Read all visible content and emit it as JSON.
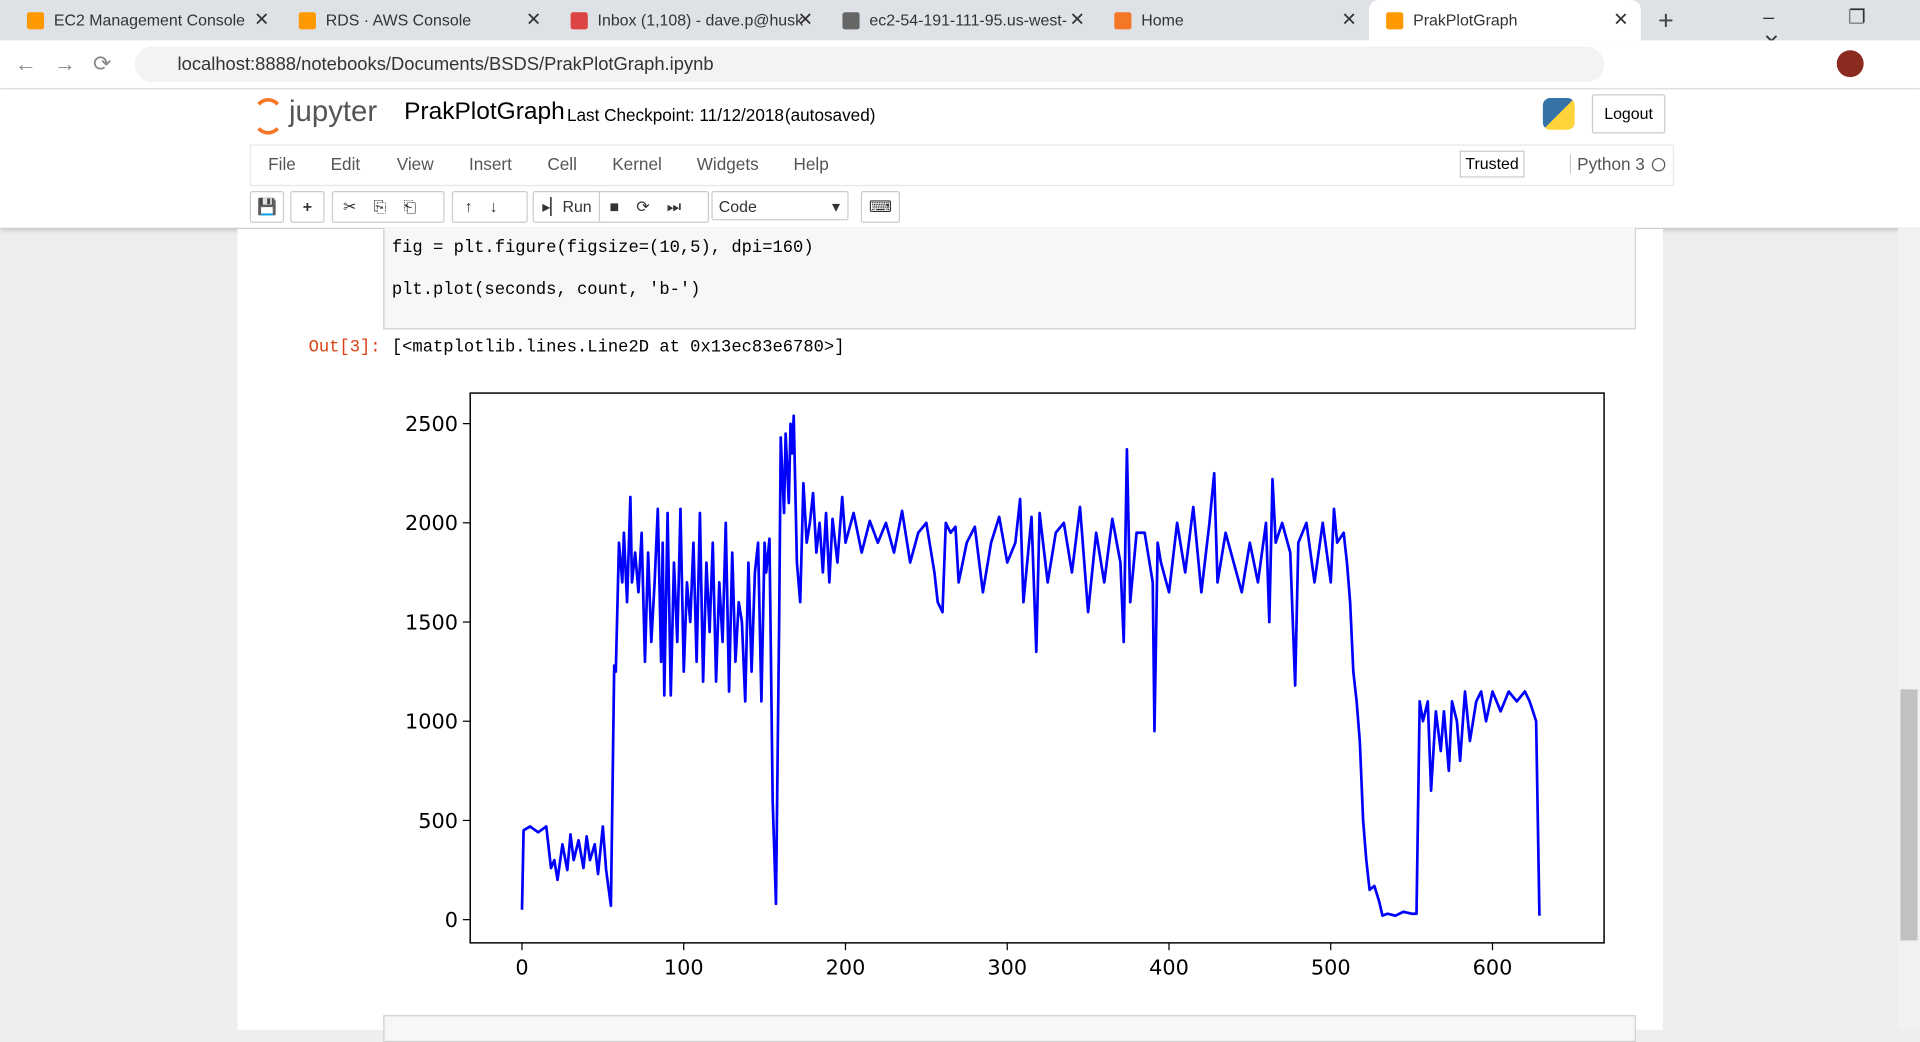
{
  "browser": {
    "tabs": [
      "EC2 Management Console",
      "RDS · AWS Console",
      "Inbox (1,108) - dave.p@husk",
      "ec2-54-191-111-95.us-west-",
      "Home",
      "PrakPlotGraph"
    ],
    "url": "localhost:8888/notebooks/Documents/BSDS/PrakPlotGraph.ipynb"
  },
  "header": {
    "logo": "jupyter",
    "notebook_name": "PrakPlotGraph",
    "checkpoint": "Last Checkpoint: 11/12/2018",
    "autosaved": "(autosaved)",
    "logout": "Logout"
  },
  "menu": {
    "items": [
      "File",
      "Edit",
      "View",
      "Insert",
      "Cell",
      "Kernel",
      "Widgets",
      "Help"
    ],
    "trusted": "Trusted",
    "kernel": "Python 3"
  },
  "toolbar": {
    "run": "Run",
    "cell_type": "Code"
  },
  "cell": {
    "code": [
      "fig = plt.figure(figsize=(10,5), dpi=160)",
      "plt.plot(seconds, count, 'b-')"
    ],
    "out_prompt": "Out[3]:",
    "output": "[<matplotlib.lines.Line2D at 0x13ec83e6780>]"
  },
  "chart_data": {
    "type": "line",
    "color": "#0000ff",
    "x": [
      0,
      1,
      5,
      10,
      15,
      18,
      20,
      22,
      25,
      28,
      30,
      32,
      35,
      38,
      40,
      42,
      45,
      47,
      50,
      52,
      55,
      57,
      58,
      60,
      62,
      63,
      65,
      67,
      68,
      70,
      72,
      74,
      76,
      78,
      80,
      82,
      84,
      86,
      87,
      88,
      90,
      92,
      94,
      96,
      98,
      100,
      102,
      104,
      106,
      108,
      110,
      112,
      114,
      116,
      118,
      120,
      122,
      124,
      126,
      128,
      130,
      132,
      134,
      136,
      138,
      140,
      142,
      144,
      146,
      148,
      150,
      151,
      153,
      155,
      157,
      159,
      160,
      162,
      163,
      165,
      166,
      167,
      168,
      170,
      172,
      174,
      176,
      178,
      180,
      182,
      184,
      186,
      188,
      190,
      192,
      195,
      198,
      200,
      205,
      210,
      215,
      220,
      225,
      230,
      235,
      240,
      245,
      250,
      255,
      257,
      260,
      262,
      265,
      268,
      270,
      275,
      280,
      285,
      290,
      295,
      300,
      305,
      308,
      310,
      315,
      318,
      320,
      325,
      330,
      335,
      340,
      345,
      350,
      355,
      360,
      365,
      370,
      372,
      374,
      376,
      380,
      385,
      390,
      391,
      393,
      395,
      400,
      405,
      410,
      415,
      420,
      425,
      428,
      430,
      435,
      440,
      445,
      450,
      455,
      460,
      462,
      464,
      466,
      470,
      475,
      478,
      480,
      485,
      490,
      495,
      500,
      502,
      504,
      508,
      510,
      512,
      514,
      516,
      518,
      520,
      522,
      524,
      527,
      530,
      532,
      535,
      540,
      545,
      550,
      553,
      555,
      557,
      560,
      562,
      565,
      568,
      570,
      573,
      575,
      578,
      580,
      583,
      586,
      590,
      593,
      596,
      600,
      605,
      610,
      615,
      620,
      623,
      625,
      627,
      629
    ],
    "values": [
      50,
      450,
      470,
      440,
      470,
      260,
      300,
      200,
      380,
      250,
      430,
      300,
      400,
      260,
      420,
      300,
      380,
      230,
      470,
      250,
      70,
      1280,
      1250,
      1900,
      1700,
      1950,
      1600,
      2130,
      1700,
      1850,
      1650,
      1950,
      1300,
      1850,
      1400,
      1700,
      2070,
      1300,
      1900,
      1130,
      2050,
      1130,
      1800,
      1400,
      2070,
      1250,
      1700,
      1500,
      1900,
      1300,
      2050,
      1200,
      1800,
      1450,
      1900,
      1200,
      1700,
      1400,
      2000,
      1150,
      1850,
      1300,
      1600,
      1500,
      1100,
      1800,
      1250,
      1750,
      1900,
      1100,
      1900,
      1750,
      1920,
      600,
      80,
      1500,
      2430,
      2050,
      2450,
      2100,
      2500,
      2350,
      2540,
      1800,
      1600,
      2200,
      1900,
      2000,
      2150,
      1850,
      2000,
      1750,
      2050,
      1700,
      2020,
      1800,
      2130,
      1900,
      2050,
      1850,
      2010,
      1900,
      2000,
      1850,
      2060,
      1800,
      1950,
      2000,
      1750,
      1600,
      1550,
      2000,
      1950,
      1980,
      1700,
      1900,
      1980,
      1650,
      1900,
      2030,
      1800,
      1900,
      2120,
      1600,
      2030,
      1350,
      2050,
      1700,
      1950,
      2000,
      1750,
      2080,
      1550,
      1950,
      1700,
      2020,
      1800,
      1400,
      2370,
      1600,
      1950,
      1950,
      1700,
      950,
      1900,
      1800,
      1650,
      2000,
      1750,
      2080,
      1650,
      2000,
      2250,
      1700,
      1950,
      1800,
      1650,
      1900,
      1700,
      2000,
      1500,
      2220,
      1900,
      2000,
      1850,
      1180,
      1900,
      2000,
      1700,
      2000,
      1700,
      2070,
      1900,
      1950,
      1800,
      1600,
      1250,
      1100,
      900,
      500,
      300,
      150,
      170,
      90,
      20,
      30,
      20,
      40,
      30,
      30,
      1100,
      1000,
      1100,
      650,
      1050,
      850,
      1050,
      750,
      1100,
      1000,
      800,
      1150,
      900,
      1100,
      1150,
      1000,
      1150,
      1050,
      1150,
      1100,
      1150,
      1100,
      1050,
      1000,
      20
    ],
    "xlim": [
      -32,
      669
    ],
    "ylim": [
      -117,
      2654
    ],
    "xticks": [
      0,
      100,
      200,
      300,
      400,
      500,
      600
    ],
    "yticks": [
      0,
      500,
      1000,
      1500,
      2000,
      2500
    ]
  }
}
